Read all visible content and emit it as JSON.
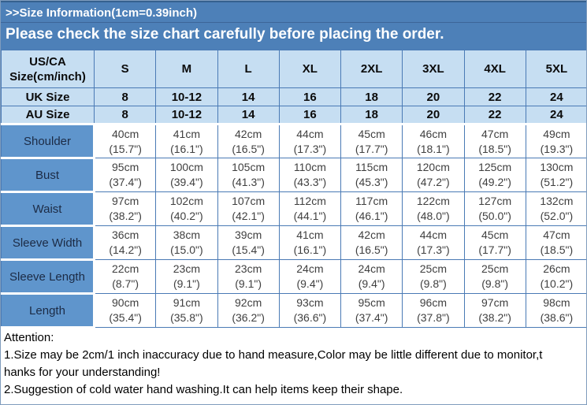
{
  "banner": {
    "title": ">>Size Information(1cm=0.39inch)",
    "subtitle": "Please check the size chart carefully before placing the order."
  },
  "table": {
    "corner_header_line1": "US/CA",
    "corner_header_line2": "Size(cm/inch)",
    "size_columns": [
      "S",
      "M",
      "L",
      "XL",
      "2XL",
      "3XL",
      "4XL",
      "5XL"
    ],
    "conversion_rows": [
      {
        "label": "UK Size",
        "values": [
          "8",
          "10-12",
          "14",
          "16",
          "18",
          "20",
          "22",
          "24"
        ]
      },
      {
        "label": "AU Size",
        "values": [
          "8",
          "10-12",
          "14",
          "16",
          "18",
          "20",
          "22",
          "24"
        ]
      }
    ],
    "measurement_rows": [
      {
        "label": "Shoulder",
        "cm": [
          "40cm",
          "41cm",
          "42cm",
          "44cm",
          "45cm",
          "46cm",
          "47cm",
          "49cm"
        ],
        "inch": [
          "(15.7\")",
          "(16.1\")",
          "(16.5\")",
          "(17.3\")",
          "(17.7\")",
          "(18.1\")",
          "(18.5\")",
          "(19.3\")"
        ]
      },
      {
        "label": "Bust",
        "cm": [
          "95cm",
          "100cm",
          "105cm",
          "110cm",
          "115cm",
          "120cm",
          "125cm",
          "130cm"
        ],
        "inch": [
          "(37.4\")",
          "(39.4\")",
          "(41.3\")",
          "(43.3\")",
          "(45.3\")",
          "(47.2\")",
          "(49.2\")",
          "(51.2\")"
        ]
      },
      {
        "label": "Waist",
        "cm": [
          "97cm",
          "102cm",
          "107cm",
          "112cm",
          "117cm",
          "122cm",
          "127cm",
          "132cm"
        ],
        "inch": [
          "(38.2\")",
          "(40.2\")",
          "(42.1\")",
          "(44.1\")",
          "(46.1\")",
          "(48.0\")",
          "(50.0\")",
          "(52.0\")"
        ]
      },
      {
        "label": "Sleeve Width",
        "cm": [
          "36cm",
          "38cm",
          "39cm",
          "41cm",
          "42cm",
          "44cm",
          "45cm",
          "47cm"
        ],
        "inch": [
          "(14.2\")",
          "(15.0\")",
          "(15.4\")",
          "(16.1\")",
          "(16.5\")",
          "(17.3\")",
          "(17.7\")",
          "(18.5\")"
        ]
      },
      {
        "label": "Sleeve Length",
        "cm": [
          "22cm",
          "23cm",
          "23cm",
          "24cm",
          "24cm",
          "25cm",
          "25cm",
          "26cm"
        ],
        "inch": [
          "(8.7\")",
          "(9.1\")",
          "(9.1\")",
          "(9.4\")",
          "(9.4\")",
          "(9.8\")",
          "(9.8\")",
          "(10.2\")"
        ]
      },
      {
        "label": "Length",
        "cm": [
          "90cm",
          "91cm",
          "92cm",
          "93cm",
          "95cm",
          "96cm",
          "97cm",
          "98cm"
        ],
        "inch": [
          "(35.4\")",
          "(35.8\")",
          "(36.2\")",
          "(36.6\")",
          "(37.4\")",
          "(37.8\")",
          "(38.2\")",
          "(38.6\")"
        ]
      }
    ]
  },
  "notes": {
    "lines": [
      "Attention:",
      "1.Size may be 2cm/1 inch inaccuracy due to hand measure,Color may be little different due to monitor,t",
      "hanks for your understanding!",
      "2.Suggestion of cold water hand washing.It can help items keep their shape."
    ]
  },
  "colors": {
    "banner_blue": "#4d80b8",
    "header_light_blue": "#c6def2",
    "label_blue": "#5f95cc",
    "grid_border_blue": "#4a7ab5",
    "banner_text": "#ffffff"
  }
}
